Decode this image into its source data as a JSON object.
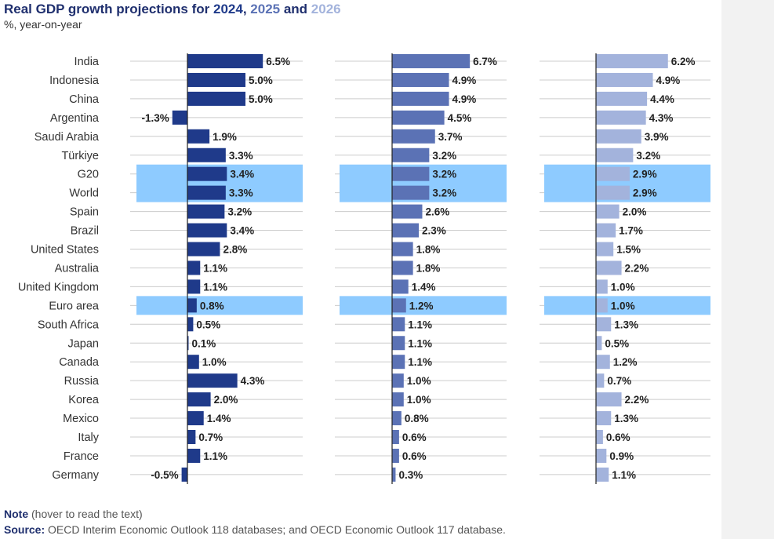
{
  "title": {
    "prefix": "Real GDP growth projections for ",
    "y1": "2024",
    "sep1": ", ",
    "y2": "2025",
    "sep2": " and ",
    "y3": "2026"
  },
  "subtitle": "%, year-on-year",
  "note": {
    "label": "Note",
    "text": " (hover to read the text)"
  },
  "source": {
    "label": "Source:",
    "text": " OECD Interim Economic Outlook 118 databases; and OECD Economic Outlook 117 database."
  },
  "colors": {
    "series_2024": "#1f3a8a",
    "series_2025": "#5b72b5",
    "series_2026": "#a3b3dc",
    "highlight": "#8ecbff",
    "axis": "#222222",
    "grid": "#cccccc"
  },
  "chart_data": {
    "type": "bar",
    "orientation": "horizontal",
    "title": "Real GDP growth projections for 2024, 2025 and 2026",
    "ylabel": "%, year-on-year",
    "highlighted_categories": [
      "G20",
      "World",
      "Euro area"
    ],
    "categories": [
      "India",
      "Indonesia",
      "China",
      "Argentina",
      "Saudi Arabia",
      "Türkiye",
      "G20",
      "World",
      "Spain",
      "Brazil",
      "United States",
      "Australia",
      "United Kingdom",
      "Euro area",
      "South Africa",
      "Japan",
      "Canada",
      "Russia",
      "Korea",
      "Mexico",
      "Italy",
      "France",
      "Germany"
    ],
    "series": [
      {
        "name": "2024",
        "values": [
          6.5,
          5.0,
          5.0,
          -1.3,
          1.9,
          3.3,
          3.4,
          3.3,
          3.2,
          3.4,
          2.8,
          1.1,
          1.1,
          0.8,
          0.5,
          0.1,
          1.0,
          4.3,
          2.0,
          1.4,
          0.7,
          1.1,
          -0.5
        ],
        "labels": [
          "6.5%",
          "5.0%",
          "5.0%",
          "-1.3%",
          "1.9%",
          "3.3%",
          "3.4%",
          "3.3%",
          "3.2%",
          "3.4%",
          "2.8%",
          "1.1%",
          "1.1%",
          "0.8%",
          "0.5%",
          "0.1%",
          "1.0%",
          "4.3%",
          "2.0%",
          "1.4%",
          "0.7%",
          "1.1%",
          "-0.5%"
        ]
      },
      {
        "name": "2025",
        "values": [
          6.7,
          4.9,
          4.9,
          4.5,
          3.7,
          3.2,
          3.2,
          3.2,
          2.6,
          2.3,
          1.8,
          1.8,
          1.4,
          1.2,
          1.1,
          1.1,
          1.1,
          1.0,
          1.0,
          0.8,
          0.6,
          0.6,
          0.3
        ],
        "labels": [
          "6.7%",
          "4.9%",
          "4.9%",
          "4.5%",
          "3.7%",
          "3.2%",
          "3.2%",
          "3.2%",
          "2.6%",
          "2.3%",
          "1.8%",
          "1.8%",
          "1.4%",
          "1.2%",
          "1.1%",
          "1.1%",
          "1.1%",
          "1.0%",
          "1.0%",
          "0.8%",
          "0.6%",
          "0.6%",
          "0.3%"
        ]
      },
      {
        "name": "2026",
        "values": [
          6.2,
          4.9,
          4.4,
          4.3,
          3.9,
          3.2,
          2.9,
          2.9,
          2.0,
          1.7,
          1.5,
          2.2,
          1.0,
          1.0,
          1.3,
          0.5,
          1.2,
          0.7,
          2.2,
          1.3,
          0.6,
          0.9,
          1.1
        ],
        "labels": [
          "6.2%",
          "4.9%",
          "4.4%",
          "4.3%",
          "3.9%",
          "3.2%",
          "2.9%",
          "2.9%",
          "2.0%",
          "1.7%",
          "1.5%",
          "2.2%",
          "1.0%",
          "1.0%",
          "1.3%",
          "0.5%",
          "1.2%",
          "0.7%",
          "2.2%",
          "1.3%",
          "0.6%",
          "0.9%",
          "1.1%"
        ]
      }
    ]
  }
}
